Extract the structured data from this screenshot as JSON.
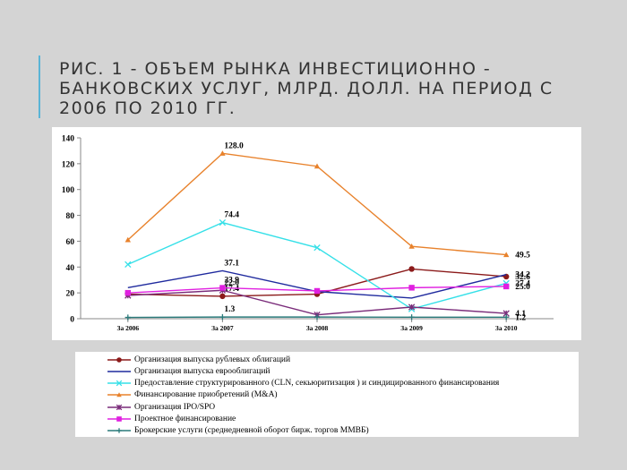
{
  "slide": {
    "title": "Рис. 1 - Объем рынка инвестиционно - банковских услуг, млрд. долл. на период с 2006 по 2010 гг.",
    "accent_color": "#5ab4d6"
  },
  "chart_data": {
    "type": "line",
    "categories": [
      "За 2006",
      "За 2007",
      "За 2008",
      "За 2009",
      "За 2010"
    ],
    "ylim": [
      0,
      140
    ],
    "yticks": [
      0,
      20,
      40,
      60,
      80,
      100,
      120,
      140
    ],
    "grid": false,
    "legend_position": "bottom",
    "series": [
      {
        "name": "Организация выпуска рублевых облигаций",
        "values": [
          19,
          17.4,
          19,
          38.5,
          32.6
        ],
        "color": "#8b1a1a",
        "marker": "circle",
        "labels": [
          "",
          "17.4",
          "",
          "",
          "32.6"
        ]
      },
      {
        "name": "Организация выпуска еврооблигаций",
        "values": [
          24,
          37.1,
          21,
          16,
          34.2
        ],
        "color": "#1f2a9e",
        "marker": "none",
        "labels": [
          "",
          "37.1",
          "",
          "",
          "34.2"
        ]
      },
      {
        "name": "Предоставление структурированного (CLN, секьюритизация ) и синдицированного финансирования",
        "values": [
          42,
          74.4,
          55,
          7.5,
          27.4
        ],
        "color": "#35e0e8",
        "marker": "x",
        "labels": [
          "",
          "74.4",
          "",
          "",
          "27.4"
        ]
      },
      {
        "name": "Финансирование приобретений (M&A)",
        "values": [
          61,
          128.0,
          118,
          56,
          49.5
        ],
        "color": "#e8822c",
        "marker": "triangle",
        "labels": [
          "",
          "128.0",
          "",
          "",
          "49.5"
        ]
      },
      {
        "name": "Организация IPO/SPO",
        "values": [
          18,
          22.0,
          3,
          9,
          4.1
        ],
        "color": "#7a2c7a",
        "marker": "star",
        "labels": [
          "",
          "22.0",
          "",
          "",
          "4.1"
        ]
      },
      {
        "name": "Проектное финансирование",
        "values": [
          20,
          23.9,
          21.5,
          24,
          25.0
        ],
        "color": "#e020e0",
        "marker": "square",
        "labels": [
          "",
          "23.9",
          "",
          "",
          "25.0"
        ]
      },
      {
        "name": "Брокерские услуги (среднедневной оборот бирж. торгов ММВБ)",
        "values": [
          1,
          1.3,
          1.3,
          1.2,
          1.2
        ],
        "color": "#2a7a7a",
        "marker": "plus",
        "labels": [
          "",
          "1.3",
          "",
          "",
          "1.2"
        ]
      }
    ]
  }
}
